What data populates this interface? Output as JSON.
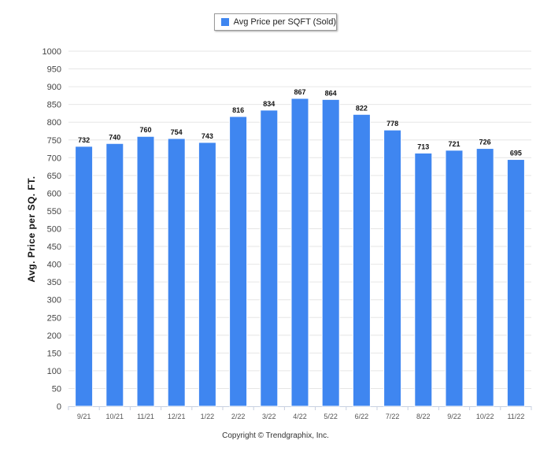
{
  "chart_data": {
    "type": "bar",
    "categories": [
      "9/21",
      "10/21",
      "11/21",
      "12/21",
      "1/22",
      "2/22",
      "3/22",
      "4/22",
      "5/22",
      "6/22",
      "7/22",
      "8/22",
      "9/22",
      "10/22",
      "11/22"
    ],
    "series": [
      {
        "name": "Avg Price per SQFT (Sold)",
        "values": [
          732,
          740,
          760,
          754,
          743,
          816,
          834,
          867,
          864,
          822,
          778,
          713,
          721,
          726,
          695
        ]
      }
    ],
    "ylabel": "Avg. Price per SQ. FT.",
    "xlabel": "",
    "ylim": [
      0,
      1000
    ],
    "yticks": [
      0,
      50,
      100,
      150,
      200,
      250,
      300,
      350,
      400,
      450,
      500,
      550,
      600,
      650,
      700,
      750,
      800,
      850,
      900,
      950,
      1000
    ],
    "legend_position": "top-center",
    "grid": true,
    "bar_color": "#3f86f0"
  },
  "footer": {
    "copyright": "Copyright © Trendgraphix, Inc."
  }
}
